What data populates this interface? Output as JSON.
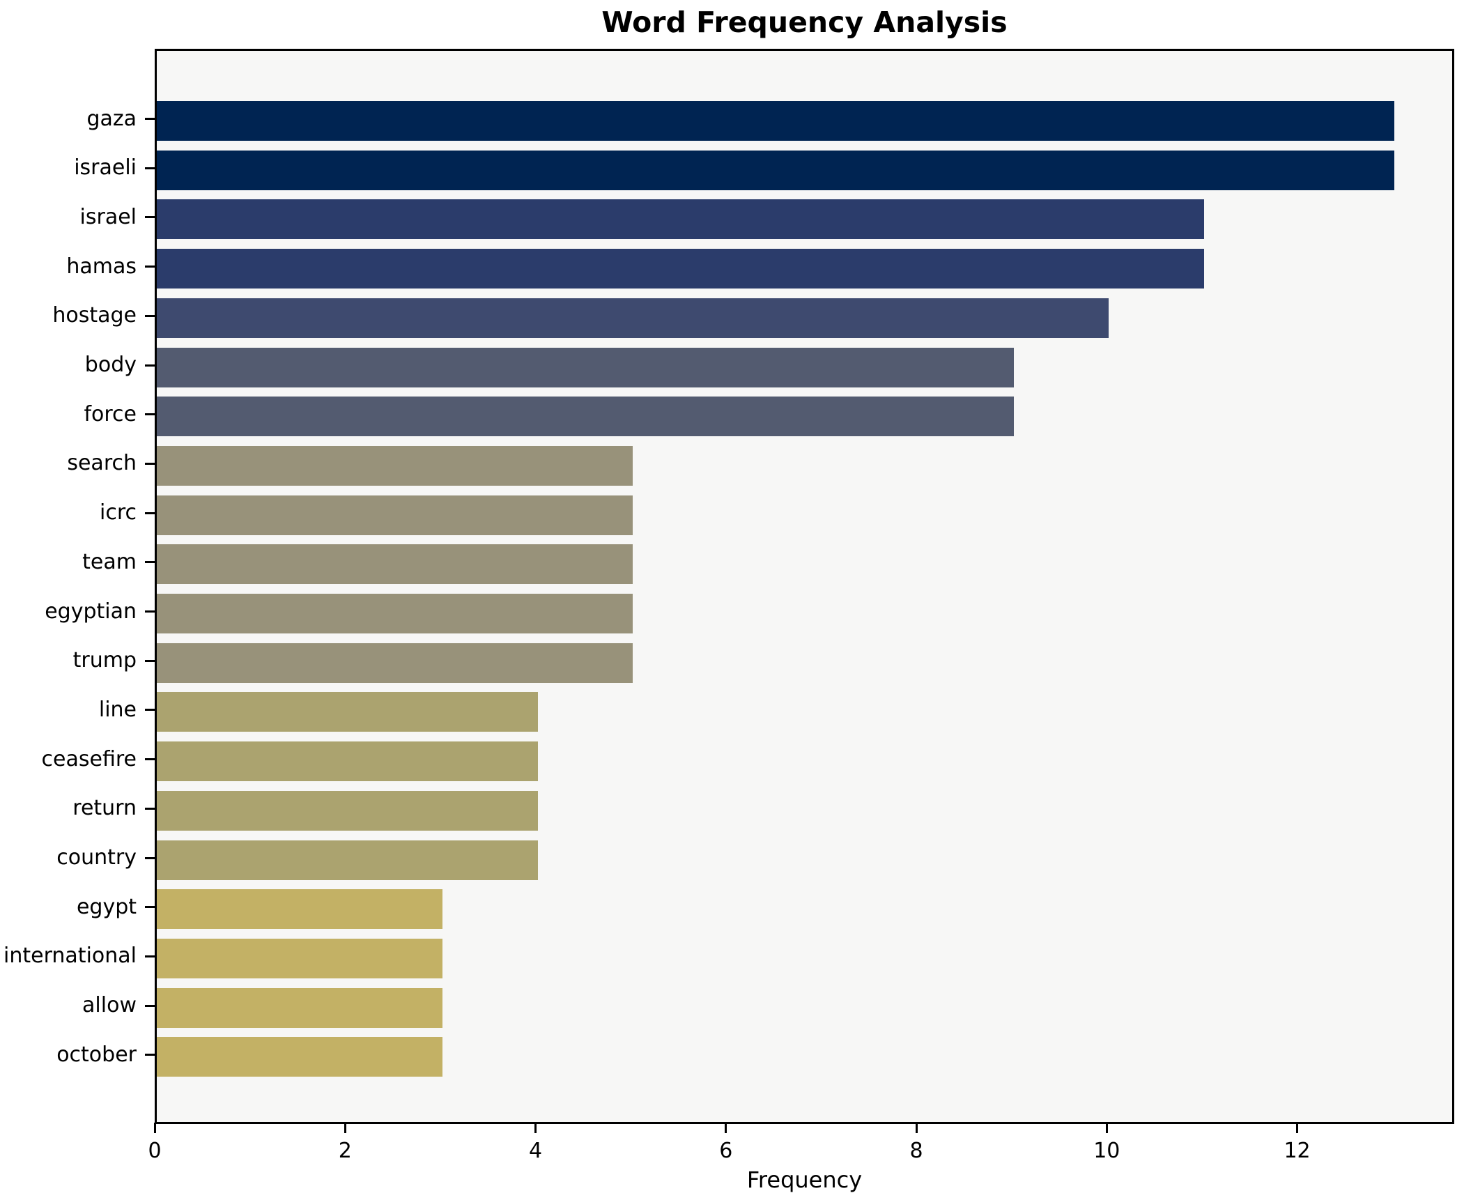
{
  "chart_data": {
    "type": "bar",
    "orientation": "horizontal",
    "title": "Word Frequency Analysis",
    "xlabel": "Frequency",
    "ylabel": "",
    "categories": [
      "gaza",
      "israeli",
      "israel",
      "hamas",
      "hostage",
      "body",
      "force",
      "search",
      "icrc",
      "team",
      "egyptian",
      "trump",
      "line",
      "ceasefire",
      "return",
      "country",
      "egypt",
      "international",
      "allow",
      "october"
    ],
    "values": [
      13,
      13,
      11,
      11,
      10,
      9,
      9,
      5,
      5,
      5,
      5,
      5,
      4,
      4,
      4,
      4,
      3,
      3,
      3,
      3
    ],
    "bar_colors": [
      "#002452",
      "#002452",
      "#2b3c6b",
      "#2b3c6b",
      "#3e4a6f",
      "#535b70",
      "#535b70",
      "#98927a",
      "#98927a",
      "#98927a",
      "#98927a",
      "#98927a",
      "#aba36f",
      "#aba36f",
      "#aba36f",
      "#aba36f",
      "#c3b165",
      "#c3b165",
      "#c3b165",
      "#c3b165"
    ],
    "xticks": [
      0,
      2,
      4,
      6,
      8,
      10,
      12
    ],
    "xlim": [
      0,
      13.65
    ],
    "grid": false,
    "legend": null,
    "colors": {
      "plot_background": "#f7f7f6",
      "figure_background": "#ffffff",
      "spine": "#000000",
      "text": "#000000"
    }
  }
}
